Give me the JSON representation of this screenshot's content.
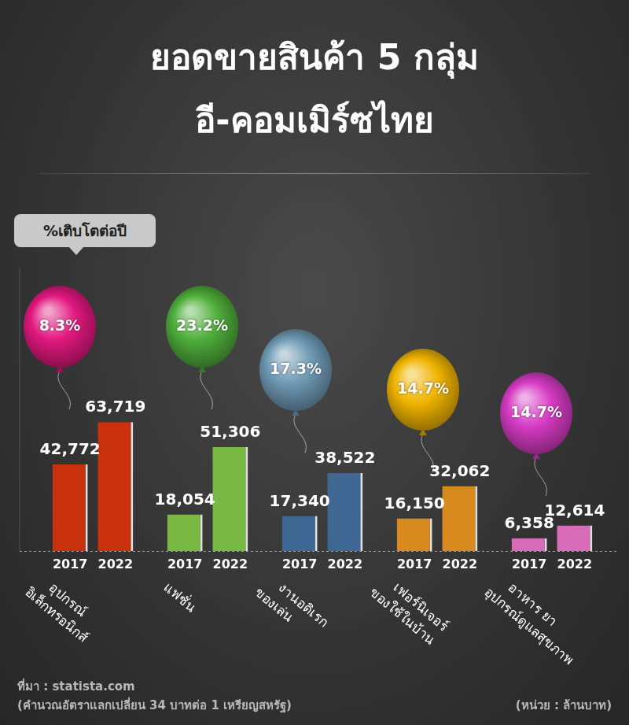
{
  "chart_data": {
    "type": "bar",
    "title": "ยอดขายสินค้า 5 กลุ่ม",
    "subtitle": "อี-คอมเมิร์ซไทย",
    "categories": [
      "อุปกรณ์\nอิเล็กทรอนิกส์",
      "แฟชั่น",
      "งานอดิเรก\nของเล่น",
      "เฟอร์นิเจอร์\nของใช้ในบ้าน",
      "อาหาร ยา\nอุปกรณ์ดูแลสุขภาพ"
    ],
    "series": [
      {
        "name": "2017",
        "values": [
          42772,
          18054,
          17340,
          16150,
          6358
        ],
        "value_labels": [
          "42,772",
          "18,054",
          "17,340",
          "16,150",
          "6,358"
        ]
      },
      {
        "name": "2022",
        "values": [
          63719,
          51306,
          38522,
          32062,
          12614
        ],
        "value_labels": [
          "63,719",
          "51,306",
          "38,522",
          "32,062",
          "12,614"
        ]
      }
    ],
    "colors": [
      "#c8310c",
      "#78b843",
      "#3e6794",
      "#d98a1e",
      "#d86cb8"
    ],
    "growth": [
      8.3,
      23.2,
      17.3,
      14.7,
      14.7
    ],
    "growth_labels": [
      "8.3%",
      "23.2%",
      "17.3%",
      "14.7%",
      "14.7%"
    ],
    "growth_title": "%เติบโตต่อปี",
    "source": "ที่มา : statista.com",
    "note": "(คำนวณอัตราแลกเปลี่ยน 34 บาทต่อ 1 เหรียญสหรัฐ)",
    "unit": "(หน่วย : ล้านบาท)",
    "ylim": [
      0,
      140000
    ],
    "yticks": [],
    "grid": false,
    "data_labels": true,
    "tick_labels": "x"
  }
}
